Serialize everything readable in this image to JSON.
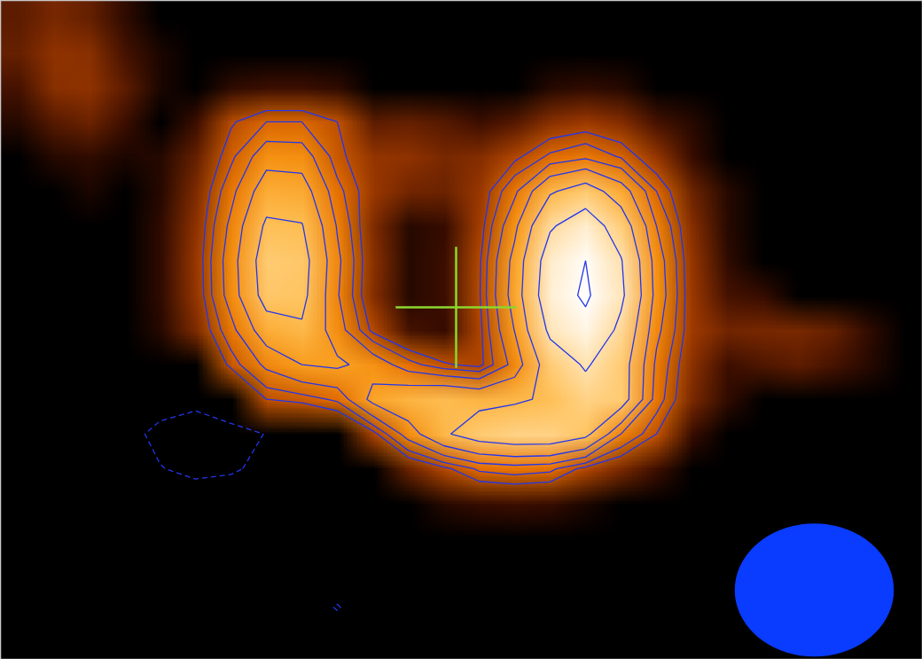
{
  "chart_data": {
    "type": "contour",
    "tick_labels": false,
    "xlim": [
      0,
      26
    ],
    "ylim": [
      0,
      19
    ],
    "color_range": [
      0,
      25
    ],
    "contour_levels": [
      3,
      4.2,
      6,
      8.5,
      12,
      17,
      24
    ],
    "negative_contour_levels": [
      -3
    ],
    "center": {
      "x": 12.85,
      "y": 8.85
    },
    "beam": {
      "x": 22.95,
      "y": 17.0,
      "major": 4.45,
      "minor": 3.8
    },
    "intensity": [
      [
        0.9,
        1.3,
        1.0,
        0.3,
        0,
        0,
        0,
        0,
        0,
        0,
        0,
        0,
        0,
        0,
        0,
        0,
        0,
        0,
        0,
        0,
        0,
        0,
        0,
        0,
        0,
        0
      ],
      [
        1.0,
        1.7,
        1.6,
        0.6,
        0.1,
        0,
        0,
        0,
        0,
        0,
        0,
        0,
        0,
        0,
        0,
        0,
        0,
        0,
        0,
        0,
        0,
        0,
        0,
        0,
        0,
        0
      ],
      [
        0.6,
        1.6,
        1.7,
        0.9,
        0.1,
        0,
        0.3,
        0.5,
        0.5,
        0.3,
        0,
        0,
        0,
        0,
        0,
        0.2,
        0.3,
        0.2,
        0,
        0,
        0,
        0,
        0,
        0,
        0,
        0
      ],
      [
        0.2,
        0.8,
        1.1,
        0.5,
        0,
        0.5,
        2.8,
        4.2,
        4.2,
        3.0,
        0.9,
        1.0,
        0.8,
        0.5,
        0.8,
        1.6,
        2.0,
        1.5,
        0.6,
        0.2,
        0,
        0,
        0,
        0,
        0,
        0
      ],
      [
        0,
        0.2,
        0.3,
        0.1,
        0.2,
        1.0,
        3.8,
        7.4,
        7.2,
        3.4,
        1.8,
        1.7,
        1.3,
        1.5,
        2.6,
        4.5,
        5.5,
        4.0,
        1.8,
        0.4,
        0,
        0,
        0,
        0,
        0,
        0
      ],
      [
        0,
        0,
        0.1,
        0,
        0.2,
        1.4,
        5.3,
        10.2,
        9.9,
        4.7,
        1.9,
        1.2,
        1.1,
        1.9,
        5.5,
        11.5,
        14,
        10,
        4.2,
        1.1,
        0.2,
        0,
        0,
        0,
        0,
        0
      ],
      [
        0,
        0,
        0,
        0,
        0.3,
        1.7,
        6.5,
        12.6,
        12.2,
        5.8,
        1.4,
        0.2,
        0.4,
        2.2,
        7.8,
        16.4,
        20,
        14.4,
        6.0,
        1.5,
        0.2,
        0,
        0,
        0,
        0,
        0
      ],
      [
        0,
        0,
        0,
        0,
        0.3,
        1.9,
        7.2,
        14,
        13.5,
        6.5,
        1.6,
        0.2,
        0.5,
        2.7,
        9.4,
        19.7,
        24,
        17.3,
        7.2,
        1.8,
        0.3,
        0,
        0,
        0,
        0,
        0
      ],
      [
        0,
        0,
        0,
        0,
        0.3,
        1.8,
        7.0,
        13.5,
        13.1,
        6.2,
        1.5,
        0.2,
        0.5,
        2.8,
        9.8,
        20.5,
        25,
        18,
        7.5,
        1.9,
        0.6,
        0.4,
        0,
        0,
        0,
        0
      ],
      [
        0,
        0,
        0,
        0,
        0.2,
        1.4,
        5.3,
        10.2,
        11.5,
        7.0,
        2.6,
        0.6,
        0.4,
        2.5,
        8.6,
        18,
        22,
        15.8,
        6.6,
        2.0,
        1.2,
        1.3,
        1.3,
        1.0,
        0.3,
        0
      ],
      [
        0,
        0,
        0,
        -0.4,
        -0.8,
        0,
        3.4,
        6.5,
        8.5,
        9.0,
        7.5,
        4.8,
        3.2,
        2.5,
        6.8,
        14.2,
        17.5,
        14,
        5.5,
        1.6,
        0.5,
        0.7,
        0.9,
        0.6,
        0.2,
        0
      ],
      [
        0,
        0,
        0,
        -1.2,
        -2.0,
        -2.3,
        -0.5,
        3.0,
        3.5,
        4.5,
        9.3,
        11,
        12,
        11,
        11.5,
        12.5,
        15,
        14,
        5,
        1.3,
        0.3,
        0,
        0,
        0,
        0,
        0
      ],
      [
        0,
        0,
        0,
        -2.2,
        -3.6,
        -4.4,
        -4.1,
        -2.9,
        -1.6,
        0,
        2.4,
        7,
        11.5,
        14,
        15,
        15,
        13,
        6,
        3.0,
        0.4,
        0,
        0,
        0,
        0,
        0,
        0
      ],
      [
        0,
        0,
        0,
        -1.8,
        -2.9,
        -3.6,
        -3.3,
        -2.4,
        -1.3,
        -0.5,
        0,
        1.1,
        2.6,
        4.5,
        5.0,
        4.6,
        2.5,
        1.3,
        0.5,
        0,
        0,
        0,
        0,
        0,
        0,
        0
      ],
      [
        0,
        0,
        0,
        -0.8,
        -1.3,
        -1.6,
        -1.5,
        -1.0,
        -0.6,
        0,
        0,
        0,
        0.2,
        0.4,
        0.5,
        0.4,
        0.1,
        0,
        0,
        0,
        0,
        0,
        0,
        0,
        0,
        0
      ],
      [
        0,
        0,
        0,
        -0.2,
        -0.3,
        -0.3,
        -0.3,
        -0.2,
        0,
        0,
        0,
        0,
        0,
        0,
        0,
        0,
        0,
        0,
        0,
        0,
        0,
        0,
        0,
        0,
        0,
        0
      ],
      [
        0,
        0,
        0,
        0,
        0,
        0,
        0,
        0,
        0,
        -1.0,
        0,
        0,
        0,
        0,
        0,
        0,
        0,
        0,
        0,
        0,
        0,
        0,
        0,
        0,
        0,
        0
      ],
      [
        0,
        0,
        0,
        0,
        0,
        0,
        0,
        0,
        -1.2,
        -3.2,
        -1.0,
        0,
        0,
        0,
        0,
        0,
        0,
        0,
        0,
        0,
        0,
        0,
        0,
        0,
        0,
        0
      ],
      [
        0,
        0,
        0,
        0,
        0,
        0,
        0,
        0,
        0,
        -1.0,
        0,
        0,
        0,
        0,
        0,
        0,
        0,
        0,
        0,
        0,
        0,
        0,
        0,
        0,
        0,
        0
      ]
    ]
  }
}
